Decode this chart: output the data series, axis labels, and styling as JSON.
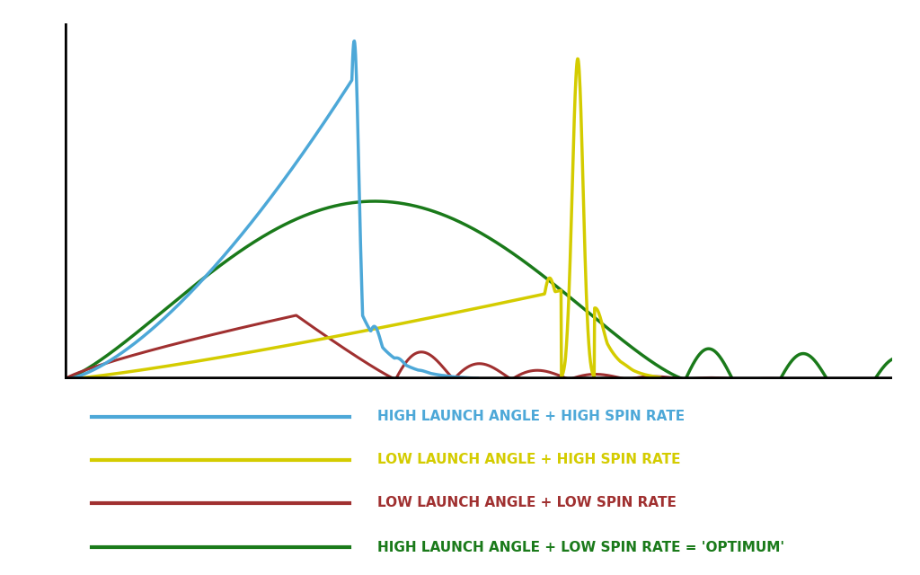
{
  "bg_color": "#ffffff",
  "blue_color": "#4da8d8",
  "yellow_color": "#d4cc00",
  "red_color": "#a03030",
  "green_color": "#1a7a1a",
  "legend_labels": [
    "HIGH LAUNCH ANGLE + HIGH SPIN RATE",
    "LOW LAUNCH ANGLE + HIGH SPIN RATE",
    "LOW LAUNCH ANGLE + LOW SPIN RATE",
    "HIGH LAUNCH ANGLE + LOW SPIN RATE = 'OPTIMUM'"
  ],
  "legend_colors": [
    "#4da8d8",
    "#d4cc00",
    "#a03030",
    "#1a7a1a"
  ],
  "legend_text_colors": [
    "#4da8d8",
    "#d4cc00",
    "#a03030",
    "#1a7a1a"
  ],
  "line_width": 2.2
}
